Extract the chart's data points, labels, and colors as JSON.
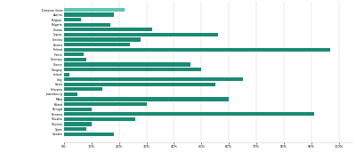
{
  "categories": [
    "European Union",
    "Austria",
    "Belgium",
    "Bulgaria",
    "Croatia",
    "Cyprus",
    "Czechia",
    "Estonia",
    "Finland",
    "France",
    "Germany",
    "Greece",
    "Hungary",
    "Ireland",
    "Italy",
    "Latvia",
    "Lithuania",
    "Luxembourg",
    "Malta",
    "Poland",
    "Portugal",
    "Romania",
    "Slovakia",
    "Slovenia",
    "Spain",
    "Sweden"
  ],
  "values": [
    0.22,
    0.18,
    0.06,
    0.17,
    0.32,
    0.56,
    0.28,
    0.24,
    0.97,
    0.07,
    0.08,
    0.46,
    0.5,
    0.02,
    0.65,
    0.55,
    0.14,
    0.05,
    0.6,
    0.3,
    0.1,
    0.91,
    0.26,
    0.1,
    0.08,
    0.18
  ],
  "bar_color": "#1a8a72",
  "eu_bar_color": "#5dc5b0",
  "background_color": "#ffffff",
  "xlim": [
    0,
    1.05
  ],
  "tick_labels": [
    "0%",
    "10%",
    "20%",
    "30%",
    "40%",
    "50%",
    "60%",
    "70%",
    "80%",
    "90%",
    "100%"
  ],
  "tick_values": [
    0,
    0.1,
    0.2,
    0.3,
    0.4,
    0.5,
    0.6,
    0.7,
    0.8,
    0.9,
    1.0
  ]
}
